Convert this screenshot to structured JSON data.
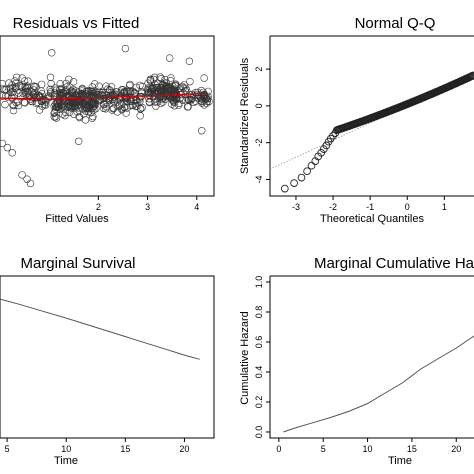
{
  "chart_data": [
    {
      "type": "scatter",
      "title": "Residuals vs Fitted",
      "xlabel": "Fitted Values",
      "ylabel": "",
      "x_ticks": [
        2,
        3,
        4
      ],
      "xlim": [
        0.0,
        4.35
      ],
      "ylim": [
        -4.6,
        3.0
      ],
      "point_style": "open-circle",
      "clusters": [
        {
          "x_range": [
            0.0,
            1.05
          ],
          "y_center": 0.25,
          "y_spread": 1.2,
          "count": 95
        },
        {
          "x_range": [
            1.1,
            1.95
          ],
          "y_center": -0.05,
          "y_spread": 1.3,
          "count": 215
        },
        {
          "x_range": [
            2.0,
            2.9
          ],
          "y_center": 0.05,
          "y_spread": 1.15,
          "count": 120
        },
        {
          "x_range": [
            3.0,
            3.6
          ],
          "y_center": 0.3,
          "y_spread": 1.05,
          "count": 140
        },
        {
          "x_range": [
            3.6,
            4.25
          ],
          "y_center": 0.15,
          "y_spread": 0.95,
          "count": 60
        }
      ],
      "outliers": [
        {
          "x": 0.05,
          "y": -2.1
        },
        {
          "x": 0.15,
          "y": -2.3
        },
        {
          "x": 0.25,
          "y": -2.55
        },
        {
          "x": 0.45,
          "y": -3.6
        },
        {
          "x": 0.55,
          "y": -3.8
        },
        {
          "x": 0.62,
          "y": -4.0
        },
        {
          "x": 2.55,
          "y": 2.4
        },
        {
          "x": 1.05,
          "y": 2.2
        },
        {
          "x": 3.45,
          "y": 1.95
        },
        {
          "x": 3.85,
          "y": 1.8
        },
        {
          "x": 4.1,
          "y": -1.5
        },
        {
          "x": 4.15,
          "y": 1.0
        },
        {
          "x": 1.6,
          "y": -2.0
        }
      ],
      "smooth_line": {
        "color": "#d40000",
        "x": [
          0.0,
          0.5,
          1.0,
          1.5,
          2.0,
          2.5,
          3.0,
          3.5,
          4.0,
          4.2
        ],
        "y": [
          0.05,
          0.02,
          0.0,
          0.04,
          0.08,
          0.12,
          0.16,
          0.2,
          0.26,
          0.28
        ]
      }
    },
    {
      "type": "scatter",
      "title": "Normal Q-Q",
      "xlabel": "Theoretical Quantiles",
      "ylabel": "Standardized Residuals",
      "x_ticks": [
        -3,
        -2,
        -1,
        0,
        1
      ],
      "y_ticks": [
        -4,
        -2,
        0,
        2
      ],
      "xlim": [
        -3.7,
        1.8
      ],
      "ylim": [
        -4.9,
        3.8
      ],
      "point_style": "open-circle",
      "reference_line": {
        "style": "dotted",
        "intercept": 0.0,
        "slope": 0.93
      },
      "qq_points": {
        "tail_low": [
          {
            "x": -3.3,
            "y": -4.5
          },
          {
            "x": -3.05,
            "y": -4.2
          },
          {
            "x": -2.85,
            "y": -3.9
          },
          {
            "x": -2.7,
            "y": -3.55
          },
          {
            "x": -2.58,
            "y": -3.25
          },
          {
            "x": -2.48,
            "y": -3.0
          },
          {
            "x": -2.4,
            "y": -2.75
          },
          {
            "x": -2.32,
            "y": -2.55
          },
          {
            "x": -2.25,
            "y": -2.35
          },
          {
            "x": -2.18,
            "y": -2.15
          },
          {
            "x": -2.12,
            "y": -1.95
          },
          {
            "x": -2.06,
            "y": -1.78
          },
          {
            "x": -2.0,
            "y": -1.62
          },
          {
            "x": -1.94,
            "y": -1.48
          }
        ],
        "body_start": -1.9,
        "body_end": 1.8,
        "body_count": 150,
        "body_y_at_start": -1.32,
        "body_slope": 0.68,
        "body_curve": 0.035
      }
    },
    {
      "type": "line",
      "title": "Marginal Survival",
      "xlabel": "Time",
      "ylabel": "",
      "x_ticks": [
        5,
        10,
        15,
        20
      ],
      "x_tick_labels": [
        "5",
        "10",
        "15",
        "20"
      ],
      "xlim": [
        4.4,
        22.5
      ],
      "ylim": [
        0.3,
        1.0
      ],
      "series": [
        {
          "x": [
            4.4,
            6,
            8,
            10,
            12,
            14,
            16,
            18,
            20,
            21.3
          ],
          "y": [
            0.9,
            0.878,
            0.848,
            0.818,
            0.786,
            0.754,
            0.722,
            0.69,
            0.658,
            0.64
          ]
        }
      ]
    },
    {
      "type": "line",
      "title": "Marginal Cumulative Ha",
      "xlabel": "Time",
      "ylabel": "Cumulative Hazard",
      "x_ticks": [
        0,
        5,
        10,
        15,
        20
      ],
      "x_tick_labels": [
        "0",
        "5",
        "10",
        "15",
        "20"
      ],
      "y_ticks": [
        0.0,
        0.2,
        0.4,
        0.6,
        0.8,
        1.0
      ],
      "y_tick_labels": [
        "0.0",
        "0.2",
        "0.4",
        "0.6",
        "0.8",
        "1.0"
      ],
      "xlim": [
        -1.0,
        22.0
      ],
      "ylim": [
        -0.04,
        1.04
      ],
      "series": [
        {
          "x": [
            0.5,
            2,
            4,
            6,
            8,
            10,
            12,
            14,
            16,
            18,
            20,
            22
          ],
          "y": [
            0.0,
            0.03,
            0.065,
            0.1,
            0.14,
            0.19,
            0.26,
            0.33,
            0.42,
            0.49,
            0.56,
            0.64
          ]
        }
      ]
    }
  ]
}
